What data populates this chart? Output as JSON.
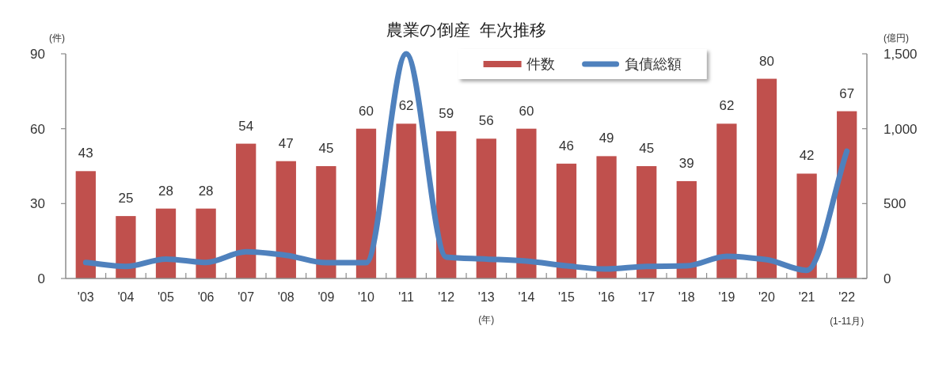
{
  "chart_data": {
    "type": "bar",
    "title": "農業の倒産  年次推移",
    "xlabel": "(年)",
    "ylabel": "(件)",
    "y2label": "(億円)",
    "categories": [
      "'03",
      "'04",
      "'05",
      "'06",
      "'07",
      "'08",
      "'09",
      "'10",
      "'11",
      "'12",
      "'13",
      "'14",
      "'15",
      "'16",
      "'17",
      "'18",
      "'19",
      "'20",
      "'21",
      "'22"
    ],
    "series": [
      {
        "name": "件数",
        "color": "#c0504d",
        "data_labels": true,
        "values": [
          43,
          25,
          28,
          28,
          54,
          47,
          45,
          60,
          62,
          59,
          56,
          60,
          46,
          49,
          45,
          39,
          62,
          80,
          42,
          67
        ]
      },
      {
        "name": "負債総額",
        "type": "line",
        "axis": "y2",
        "color": "#4f81bd",
        "line_style": "solid",
        "values": [
          107,
          81,
          130,
          107,
          178,
          155,
          105,
          105,
          1500,
          143,
          130,
          116,
          84,
          63,
          81,
          84,
          148,
          125,
          54,
          850
        ]
      }
    ],
    "ylim": [
      0,
      90
    ],
    "yticks": [
      0,
      30,
      60,
      90
    ],
    "y2lim": [
      0,
      1500
    ],
    "y2ticks": [
      0,
      500,
      {
        "value": 1000,
        "label": "1,000"
      },
      {
        "value": 1500,
        "label": "1,500"
      }
    ],
    "legend": "top right",
    "annotations": [
      "(1-11月)"
    ]
  }
}
